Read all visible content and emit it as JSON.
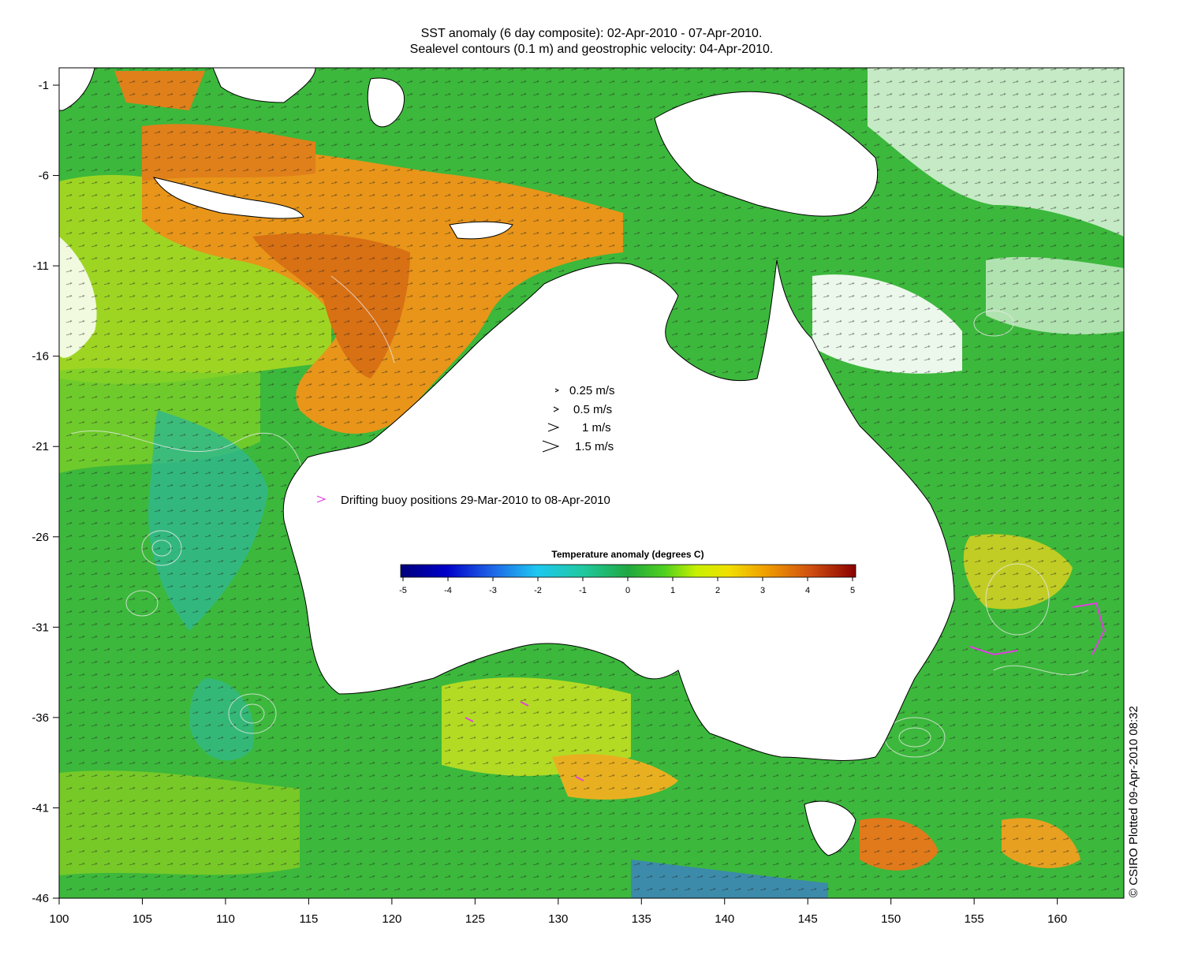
{
  "title_line1": "SST anomaly (6 day composite): 02-Apr-2010 - 07-Apr-2010.",
  "title_line2": "Sealevel contours (0.1 m) and geostrophic velocity: 04-Apr-2010.",
  "x_ticks": [
    "100",
    "105",
    "110",
    "115",
    "120",
    "125",
    "130",
    "135",
    "140",
    "145",
    "150",
    "155",
    "160"
  ],
  "y_ticks": [
    "-1",
    "-6",
    "-11",
    "-16",
    "-21",
    "-26",
    "-31",
    "-36",
    "-41",
    "-46"
  ],
  "velocity_legend": [
    {
      "label": "0.25 m/s",
      "speed": 0.25
    },
    {
      "label": "0.5 m/s",
      "speed": 0.5
    },
    {
      "label": "1 m/s",
      "speed": 1
    },
    {
      "label": "1.5 m/s",
      "speed": 1.5
    }
  ],
  "buoy_legend": "Drifting buoy positions 29-Mar-2010 to 08-Apr-2010",
  "colorbar": {
    "title": "Temperature anomaly (degrees C)",
    "ticks": [
      "-5",
      "-4",
      "-3",
      "-2",
      "-1",
      "0",
      "1",
      "2",
      "3",
      "4",
      "5"
    ],
    "range": [
      -5,
      5
    ]
  },
  "credit": "© CSIRO Plotted 09-Apr-2010 08:32",
  "colors": {
    "land": "#ffffff",
    "ocean_base": "#3cb83c",
    "warm": "#e08a1a",
    "buoy": "#e040e0",
    "contour": "#e8e8e8"
  }
}
